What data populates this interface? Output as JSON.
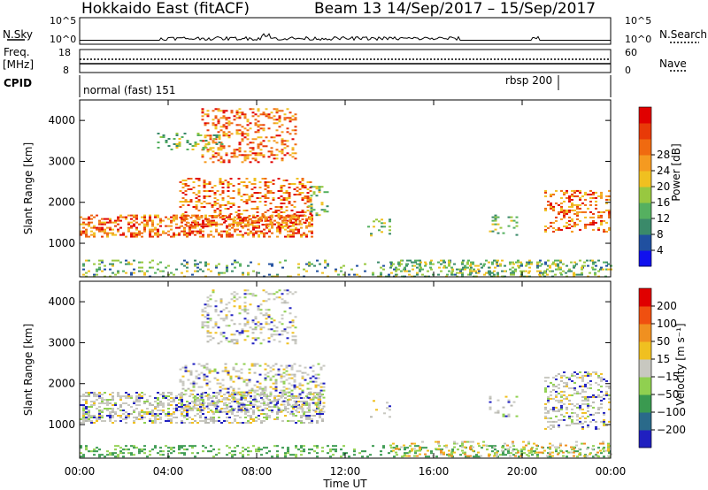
{
  "header": {
    "title": "Hokkaido East (fitACF)",
    "beam": "Beam 13",
    "date_range": "14/Sep/2017 – 15/Sep/2017"
  },
  "params": {
    "nsky_label": "N.Sky",
    "nsky_ticks": [
      "10^5",
      "10^0"
    ],
    "nsky_right_ticks": [
      "10^5",
      "10^0"
    ],
    "nsearch_label": "N.Search",
    "freq_label": "Freq.",
    "freq_unit": "[MHz]",
    "freq_ticks": [
      "18",
      "8"
    ],
    "nave_ticks": [
      "60",
      "0"
    ],
    "nave_label": "Nave",
    "cpid_label": "CPID",
    "cpid_segments": [
      {
        "label": "normal (fast) 151",
        "start_hour": 0
      },
      {
        "label": "rbsp 200",
        "start_hour": 21.75
      }
    ]
  },
  "chart_data": [
    {
      "type": "heatmap",
      "name": "power",
      "ylabel": "Slant Range [km]",
      "yticks": [
        "1000",
        "2000",
        "3000",
        "4000"
      ],
      "ylim": [
        180,
        4500
      ],
      "xlim_hours": [
        0,
        24
      ],
      "colorbar": {
        "label": "Power [dB]",
        "ticks": [
          "4",
          "8",
          "12",
          "16",
          "20",
          "24",
          "28"
        ],
        "colors": [
          "#1010ee",
          "#2050a0",
          "#3a8a6a",
          "#55b060",
          "#98c840",
          "#f0c020",
          "#f59a20",
          "#f06a10",
          "#e83a08",
          "#e00000"
        ]
      }
    },
    {
      "type": "heatmap",
      "name": "velocity",
      "ylabel": "Slant Range [km]",
      "yticks": [
        "1000",
        "2000",
        "3000",
        "4000"
      ],
      "ylim": [
        180,
        4500
      ],
      "xlim_hours": [
        0,
        24
      ],
      "colorbar": {
        "label": "Velocity [m s⁻¹]",
        "ticks": [
          "200",
          "100",
          "50",
          "15",
          "−15",
          "−50",
          "−100",
          "−200"
        ],
        "colors": [
          "#2020c0",
          "#2a6a8a",
          "#3a9a50",
          "#90d050",
          "#c8c8c0",
          "#f0c020",
          "#f09020",
          "#f05010",
          "#e00000"
        ]
      }
    }
  ],
  "xaxis": {
    "label": "Time UT",
    "ticks": [
      "00:00",
      "04:00",
      "08:00",
      "12:00",
      "16:00",
      "20:00",
      "00:00"
    ]
  }
}
